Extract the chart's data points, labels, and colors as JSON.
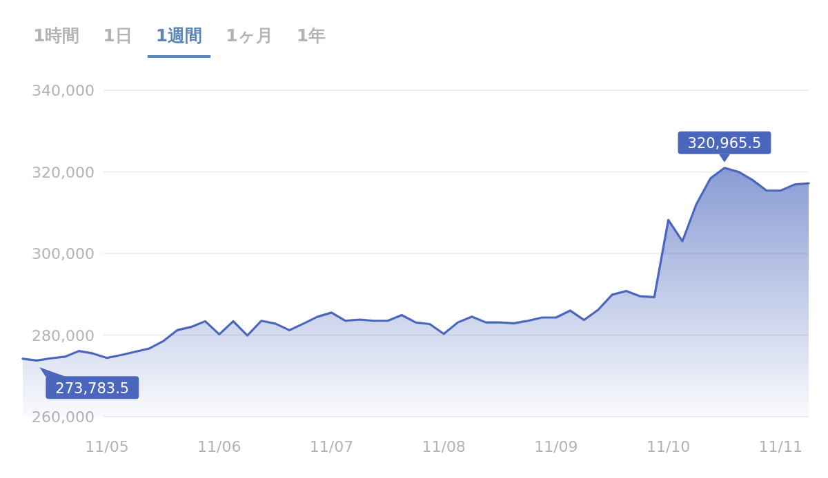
{
  "chart_data": {
    "type": "area",
    "color": "#4a66bd",
    "categories": [
      null,
      null,
      null,
      null,
      null,
      null,
      "11/05",
      null,
      null,
      null,
      null,
      null,
      null,
      null,
      "11/06",
      null,
      null,
      null,
      null,
      null,
      null,
      null,
      "11/07",
      null,
      null,
      null,
      null,
      null,
      null,
      null,
      "11/08",
      null,
      null,
      null,
      null,
      null,
      null,
      null,
      "11/09",
      null,
      null,
      null,
      null,
      null,
      null,
      null,
      "11/10",
      null,
      null,
      null,
      null,
      null,
      null,
      null,
      "11/11",
      null,
      null
    ],
    "values": [
      274200,
      273783.5,
      274300,
      274700,
      276100,
      275500,
      274400,
      275100,
      275900,
      276700,
      278500,
      281200,
      282000,
      283400,
      280200,
      283400,
      279900,
      283500,
      282800,
      281200,
      282800,
      284500,
      285500,
      283500,
      283800,
      283500,
      283500,
      284900,
      283100,
      282700,
      280300,
      283100,
      284500,
      283100,
      283100,
      282900,
      283500,
      284300,
      284300,
      286000,
      283700,
      286200,
      289900,
      290800,
      289500,
      289300,
      308200,
      303000,
      312100,
      318400,
      320965.5,
      320000,
      318000,
      315400,
      315400,
      316900,
      317200
    ],
    "ylim": [
      260000,
      340000
    ],
    "yticks": [
      {
        "value": 260000,
        "label": "260,000"
      },
      {
        "value": 280000,
        "label": "280,000"
      },
      {
        "value": 300000,
        "label": "300,000"
      },
      {
        "value": 320000,
        "label": "320,000"
      },
      {
        "value": 340000,
        "label": "340,000"
      }
    ],
    "grid": "y",
    "value_labels": [
      null,
      "273,783.5",
      null,
      null,
      null,
      null,
      null,
      null,
      null,
      null,
      null,
      null,
      null,
      null,
      null,
      null,
      null,
      null,
      null,
      null,
      null,
      null,
      null,
      null,
      null,
      null,
      null,
      null,
      null,
      null,
      null,
      null,
      null,
      null,
      null,
      null,
      null,
      null,
      null,
      null,
      null,
      null,
      null,
      null,
      null,
      null,
      null,
      null,
      null,
      null,
      "320,965.5",
      null,
      null,
      null,
      null,
      null,
      null
    ],
    "annotations": [
      "1時間",
      "1日",
      "1週間",
      "1ヶ月",
      "1年"
    ]
  }
}
